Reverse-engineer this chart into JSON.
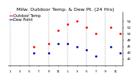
{
  "title": "Milw. Outdoor Temp. & Dew Pt. (24 Hrs)",
  "legend_temp": "Outdoor Temp",
  "legend_dew": "Dew Point",
  "hours": [
    1,
    2,
    3,
    4,
    5,
    6,
    7,
    8,
    9,
    10,
    11,
    12,
    13,
    14,
    15,
    16,
    17,
    18,
    19,
    20,
    21,
    22,
    23,
    24
  ],
  "temp": [
    null,
    null,
    null,
    null,
    null,
    46,
    null,
    null,
    47,
    null,
    51,
    null,
    53,
    null,
    54,
    null,
    52,
    null,
    50,
    null,
    null,
    52,
    null,
    50
  ],
  "dew": [
    null,
    null,
    null,
    null,
    null,
    44,
    null,
    null,
    44,
    null,
    47,
    null,
    47,
    null,
    46,
    null,
    45,
    null,
    43,
    null,
    null,
    46,
    null,
    44
  ],
  "temp_color": "#ff0000",
  "dew_color": "#0000bb",
  "bg_color": "#ffffff",
  "grid_color": "#999999",
  "ylim": [
    40,
    57
  ],
  "yticks": [
    42,
    44,
    46,
    48,
    50,
    52,
    54
  ],
  "ytick_labels": [
    "42",
    "44",
    "46",
    "48",
    "50",
    "52",
    "54"
  ],
  "xtick_positions": [
    1,
    3,
    5,
    7,
    9,
    11,
    13,
    15,
    17,
    19,
    21,
    23
  ],
  "xtick_labels": [
    "1",
    "3",
    "5",
    "7",
    "9",
    "11",
    "1",
    "3",
    "5",
    "7",
    "9",
    "11"
  ],
  "vgrid_x": [
    1,
    5,
    9,
    13,
    17,
    21
  ],
  "title_fontsize": 4.5,
  "legend_fontsize": 3.5,
  "tick_fontsize": 3.0,
  "marker_size": 2.0
}
